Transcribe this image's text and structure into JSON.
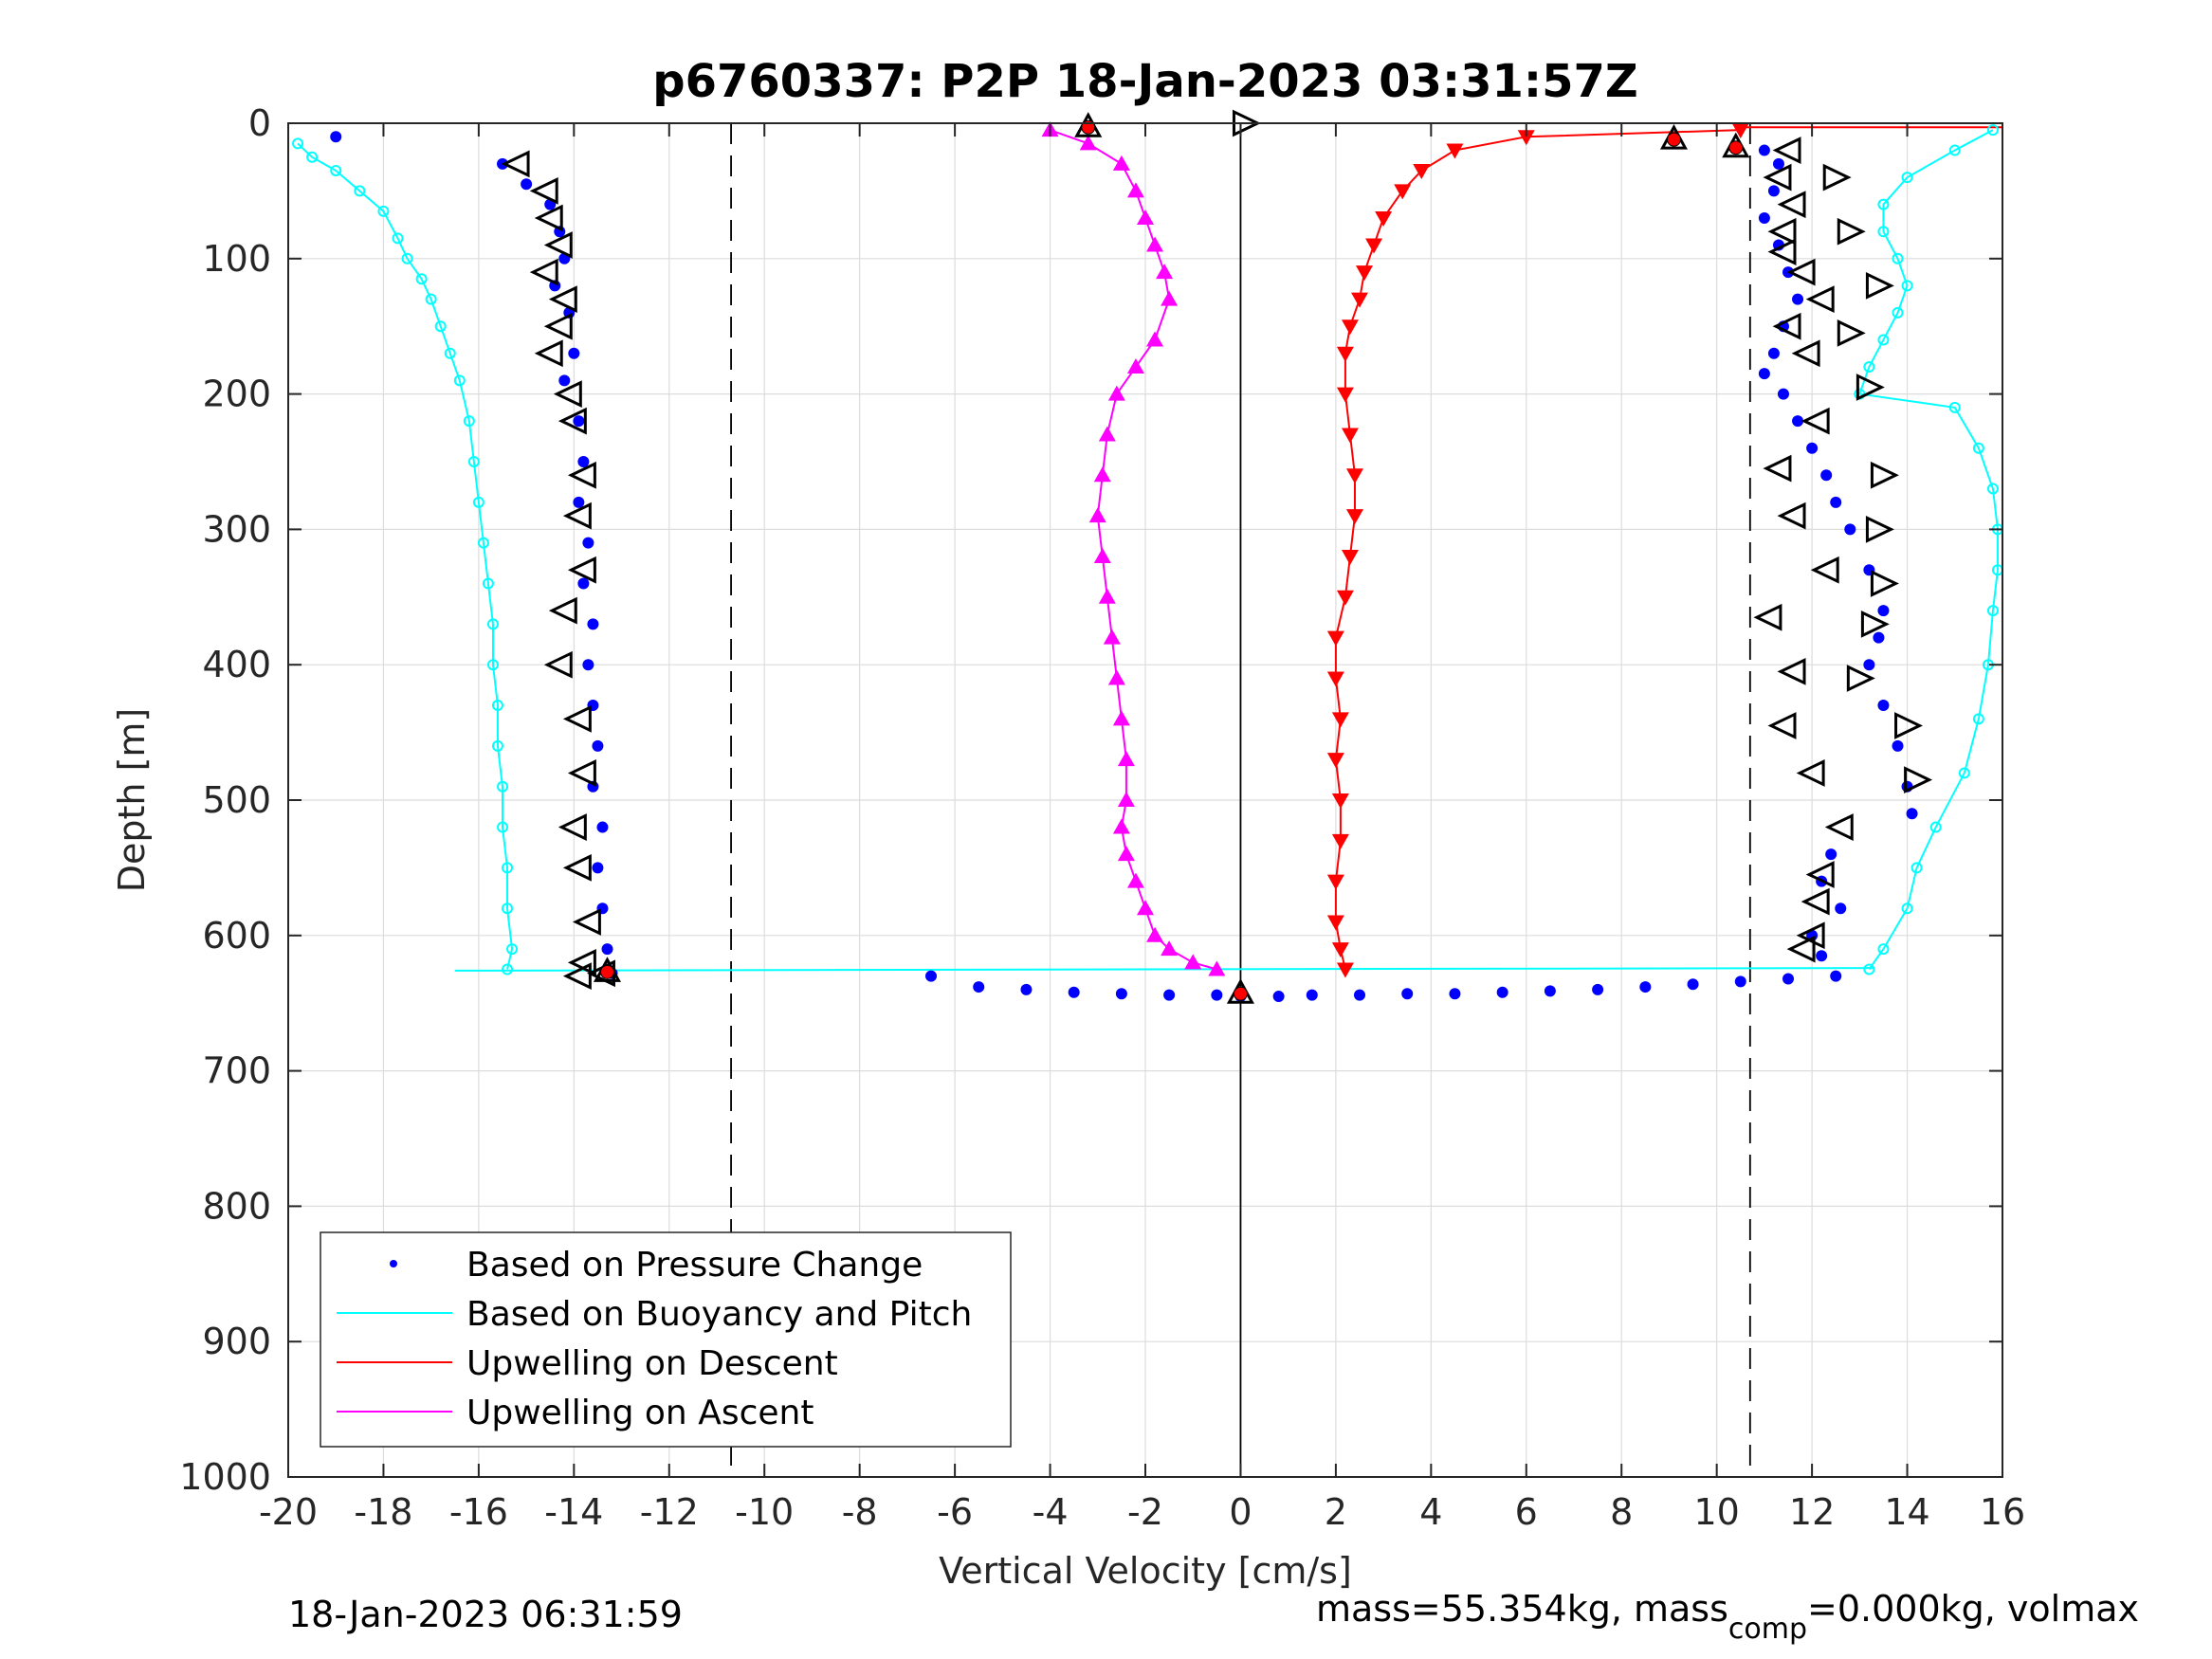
{
  "chart_data": {
    "type": "scatter",
    "title": "p6760337: P2P 18-Jan-2023 03:31:57Z",
    "xlabel": "Vertical Velocity [cm/s]",
    "ylabel": "Depth [m]",
    "xlim": [
      -20,
      16
    ],
    "ylim": [
      0,
      1000
    ],
    "y_reversed": true,
    "grid": true,
    "xticks": [
      -20,
      -18,
      -16,
      -14,
      -12,
      -10,
      -8,
      -6,
      -4,
      -2,
      0,
      2,
      4,
      6,
      8,
      10,
      12,
      14,
      16
    ],
    "yticks": [
      0,
      100,
      200,
      300,
      400,
      500,
      600,
      700,
      800,
      900,
      1000
    ],
    "reference_lines": [
      {
        "x": -10.7,
        "style": "dashed"
      },
      {
        "x": 10.7,
        "style": "dashed"
      },
      {
        "x": 0,
        "style": "solid"
      }
    ],
    "legend": {
      "position": "bottom-left",
      "entries": [
        {
          "label": "Based on Pressure Change",
          "color": "#0000ff",
          "marker": "dot"
        },
        {
          "label": "Based on Buoyancy and Pitch",
          "color": "#00ffff",
          "marker": "line"
        },
        {
          "label": "Upwelling on Descent",
          "color": "#ff0000",
          "marker": "line"
        },
        {
          "label": "Upwelling on Ascent",
          "color": "#ff00ff",
          "marker": "line"
        }
      ]
    },
    "series": [
      {
        "key": "pressure_descent",
        "color": "#0000ff",
        "marker": "dot",
        "x": [
          -19.0,
          -15.5,
          -15.0,
          -14.5,
          -14.3,
          -14.2,
          -14.4,
          -14.1,
          -14.0,
          -14.2,
          -13.9,
          -13.8,
          -13.9,
          -13.7,
          -13.8,
          -13.6,
          -13.7,
          -13.6,
          -13.5,
          -13.6,
          -13.4,
          -13.5,
          -13.4,
          -13.3,
          -13.2
        ],
        "y": [
          10,
          30,
          45,
          60,
          80,
          100,
          120,
          140,
          170,
          190,
          220,
          250,
          280,
          310,
          340,
          370,
          400,
          430,
          460,
          490,
          520,
          550,
          580,
          610,
          628
        ]
      },
      {
        "key": "pressure_ascent",
        "color": "#0000ff",
        "marker": "dot",
        "x": [
          11.0,
          11.3,
          11.2,
          11.0,
          11.3,
          11.5,
          11.7,
          11.4,
          11.2,
          11.0,
          11.4,
          11.7,
          12.0,
          12.3,
          12.5,
          12.8,
          13.2,
          13.5,
          13.4,
          13.2,
          13.5,
          13.8,
          14.0,
          14.1,
          12.4,
          12.2,
          12.6,
          12.0,
          12.2,
          12.5
        ],
        "y": [
          20,
          30,
          50,
          70,
          90,
          110,
          130,
          150,
          170,
          185,
          200,
          220,
          240,
          260,
          280,
          300,
          330,
          360,
          380,
          400,
          430,
          460,
          490,
          510,
          540,
          560,
          580,
          600,
          615,
          630
        ]
      },
      {
        "key": "pressure_bottom",
        "color": "#0000ff",
        "marker": "dot",
        "x": [
          -6.5,
          -5.5,
          -4.5,
          -3.5,
          -2.5,
          -1.5,
          -0.5,
          0,
          0.8,
          1.5,
          2.5,
          3.5,
          4.5,
          5.5,
          6.5,
          7.5,
          8.5,
          9.5,
          10.5,
          11.5
        ],
        "y": [
          630,
          638,
          640,
          642,
          643,
          644,
          644,
          645,
          645,
          644,
          644,
          643,
          643,
          642,
          641,
          640,
          638,
          636,
          634,
          632
        ]
      },
      {
        "key": "buoyancy_pitch_descent",
        "color": "#00ffff",
        "marker": "line",
        "x": [
          -19.8,
          -19.5,
          -19.0,
          -18.5,
          -18.0,
          -17.7,
          -17.5,
          -17.2,
          -17.0,
          -16.8,
          -16.6,
          -16.4,
          -16.2,
          -16.1,
          -16.0,
          -15.9,
          -15.8,
          -15.7,
          -15.7,
          -15.6,
          -15.6,
          -15.5,
          -15.5,
          -15.4,
          -15.4,
          -15.3,
          -15.4
        ],
        "y": [
          15,
          25,
          35,
          50,
          65,
          85,
          100,
          115,
          130,
          150,
          170,
          190,
          220,
          250,
          280,
          310,
          340,
          370,
          400,
          430,
          460,
          490,
          520,
          550,
          580,
          610,
          625
        ]
      },
      {
        "key": "buoyancy_pitch_ascent",
        "color": "#00ffff",
        "marker": "line",
        "x": [
          15.8,
          15.0,
          14.0,
          13.5,
          13.5,
          13.8,
          14.0,
          13.8,
          13.5,
          13.2,
          13.0,
          15.0,
          15.5,
          15.8,
          15.9,
          15.9,
          15.8,
          15.7,
          15.5,
          15.2,
          14.6,
          14.2,
          14.0,
          13.5,
          13.2
        ],
        "y": [
          5,
          20,
          40,
          60,
          80,
          100,
          120,
          140,
          160,
          180,
          200,
          210,
          240,
          270,
          300,
          330,
          360,
          400,
          440,
          480,
          520,
          550,
          580,
          610,
          625
        ]
      },
      {
        "key": "upwelling_descent",
        "color": "#ff0000",
        "marker": "triangle-down",
        "x": [
          10.5,
          6.0,
          4.5,
          3.8,
          3.4,
          3.0,
          2.8,
          2.6,
          2.5,
          2.3,
          2.2,
          2.2,
          2.3,
          2.4,
          2.4,
          2.3,
          2.2,
          2.0,
          2.0,
          2.1,
          2.0,
          2.1,
          2.1,
          2.0,
          2.0,
          2.1,
          2.2
        ],
        "y": [
          5,
          10,
          20,
          35,
          50,
          70,
          90,
          110,
          130,
          150,
          170,
          200,
          230,
          260,
          290,
          320,
          350,
          380,
          410,
          440,
          470,
          500,
          530,
          560,
          590,
          610,
          625
        ]
      },
      {
        "key": "upwelling_ascent",
        "color": "#ff00ff",
        "marker": "triangle-up",
        "x": [
          -4.0,
          -3.2,
          -2.5,
          -2.2,
          -2.0,
          -1.8,
          -1.6,
          -1.5,
          -1.8,
          -2.2,
          -2.6,
          -2.8,
          -2.9,
          -3.0,
          -2.9,
          -2.8,
          -2.7,
          -2.6,
          -2.5,
          -2.4,
          -2.4,
          -2.5,
          -2.4,
          -2.2,
          -2.0,
          -1.8,
          -1.5,
          -1.0,
          -0.5
        ],
        "y": [
          5,
          15,
          30,
          50,
          70,
          90,
          110,
          130,
          160,
          180,
          200,
          230,
          260,
          290,
          320,
          350,
          380,
          410,
          440,
          470,
          500,
          520,
          540,
          560,
          580,
          600,
          610,
          620,
          625
        ]
      }
    ],
    "markers": {
      "left_triangles": {
        "x": [
          -15.2,
          -14.6,
          -14.5,
          -14.3,
          -14.6,
          -14.2,
          -14.3,
          -14.5,
          -14.1,
          -14.0,
          -13.8,
          -13.9,
          -13.8,
          -14.2,
          -14.3,
          -13.9,
          -13.8,
          -14.0,
          -13.9,
          -13.7,
          -13.8,
          -13.9,
          -13.4,
          11.5,
          11.3,
          11.6,
          11.4,
          11.4,
          11.8,
          12.2,
          11.5,
          11.9,
          12.1,
          11.3,
          11.6,
          12.3,
          11.1,
          11.6,
          11.4,
          12.0,
          12.6,
          12.2,
          12.1,
          12.0,
          11.8
        ],
        "y": [
          30,
          50,
          70,
          90,
          110,
          130,
          150,
          170,
          200,
          220,
          260,
          290,
          330,
          360,
          400,
          440,
          480,
          520,
          550,
          590,
          620,
          630,
          628,
          20,
          40,
          60,
          80,
          95,
          110,
          130,
          150,
          170,
          220,
          255,
          290,
          330,
          365,
          405,
          445,
          480,
          520,
          555,
          575,
          600,
          610
        ]
      },
      "right_triangles": {
        "x": [
          0.1,
          12.5,
          12.8,
          13.4,
          12.8,
          13.2,
          13.5,
          13.4,
          13.5,
          13.3,
          13.0,
          14.0,
          14.2
        ],
        "y": [
          0,
          40,
          80,
          120,
          155,
          195,
          260,
          300,
          340,
          370,
          410,
          445,
          485
        ]
      },
      "red_stars": {
        "x": [
          -3.2,
          9.1,
          10.4,
          -13.3,
          0.0
        ],
        "y": [
          3,
          12,
          18,
          627,
          643
        ]
      }
    },
    "lines": [
      {
        "color": "#00ffff",
        "from": [
          -16.5,
          626
        ],
        "to": [
          13.3,
          624
        ]
      },
      {
        "color": "#ff0000",
        "from": [
          10.5,
          3
        ],
        "to": [
          16.0,
          3
        ]
      }
    ]
  },
  "footer": {
    "left": "18-Jan-2023 06:31:59",
    "right_prefix": "mass=55.354kg, mass",
    "right_sub": "comp",
    "right_suffix": "=0.000kg, volmax"
  }
}
